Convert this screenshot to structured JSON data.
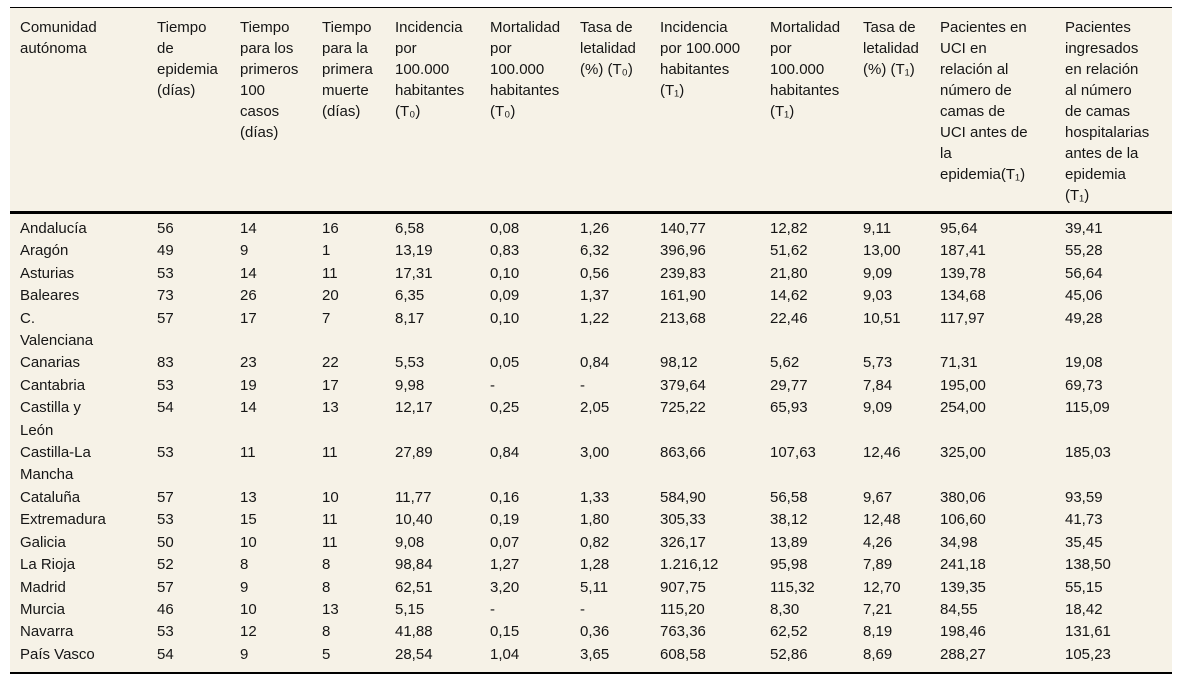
{
  "table": {
    "columns": [
      "Comunidad\nautónoma",
      "Tiempo\nde\nepidemia\n(días)",
      "Tiempo\npara los\nprimeros\n100\ncasos\n(días)",
      "Tiempo\npara la\nprimera\nmuerte\n(días)",
      "Incidencia\npor\n100.000\nhabitantes\n(T₀)",
      "Mortalidad\npor\n100.000\nhabitantes\n(T₀)",
      "Tasa de\nletalidad\n(%) (T₀)",
      "Incidencia\npor 100.000\nhabitantes\n(T₁)",
      "Mortalidad\npor\n100.000\nhabitantes\n(T₁)",
      "Tasa de\nletalidad\n(%) (T₁)",
      "Pacientes en\nUCI en\nrelación al\nnúmero de\ncamas de\nUCI antes de\nla\nepidemia(T₁)",
      "Pacientes\ningresados\nen relación\nal número\nde camas\nhospitalarias\nantes de la\nepidemia\n(T₁)"
    ],
    "rows": [
      {
        "community": "Andalucía",
        "values": [
          "56",
          "14",
          "16",
          "6,58",
          "0,08",
          "1,26",
          "140,77",
          "12,82",
          "9,11",
          "95,64",
          "39,41"
        ]
      },
      {
        "community": "Aragón",
        "values": [
          "49",
          "9",
          "1",
          "13,19",
          "0,83",
          "6,32",
          "396,96",
          "51,62",
          "13,00",
          "187,41",
          "55,28"
        ]
      },
      {
        "community": "Asturias",
        "values": [
          "53",
          "14",
          "11",
          "17,31",
          "0,10",
          "0,56",
          "239,83",
          "21,80",
          "9,09",
          "139,78",
          "56,64"
        ]
      },
      {
        "community": "Baleares",
        "values": [
          "73",
          "26",
          "20",
          "6,35",
          "0,09",
          "1,37",
          "161,90",
          "14,62",
          "9,03",
          "134,68",
          "45,06"
        ]
      },
      {
        "community": "C.\nValenciana",
        "values": [
          "57",
          "17",
          "7",
          "8,17",
          "0,10",
          "1,22",
          "213,68",
          "22,46",
          "10,51",
          "117,97",
          "49,28"
        ]
      },
      {
        "community": "Canarias",
        "values": [
          "83",
          "23",
          "22",
          "5,53",
          "0,05",
          "0,84",
          "98,12",
          "5,62",
          "5,73",
          "71,31",
          "19,08"
        ]
      },
      {
        "community": "Cantabria",
        "values": [
          "53",
          "19",
          "17",
          "9,98",
          "-",
          "-",
          "379,64",
          "29,77",
          "7,84",
          "195,00",
          "69,73"
        ]
      },
      {
        "community": "Castilla y\nLeón",
        "values": [
          "54",
          "14",
          "13",
          "12,17",
          "0,25",
          "2,05",
          "725,22",
          "65,93",
          "9,09",
          "254,00",
          "115,09"
        ]
      },
      {
        "community": "Castilla-La\nMancha",
        "values": [
          "53",
          "11",
          "11",
          "27,89",
          "0,84",
          "3,00",
          "863,66",
          "107,63",
          "12,46",
          "325,00",
          "185,03"
        ]
      },
      {
        "community": "Cataluña",
        "values": [
          "57",
          "13",
          "10",
          "11,77",
          "0,16",
          "1,33",
          "584,90",
          "56,58",
          "9,67",
          "380,06",
          "93,59"
        ]
      },
      {
        "community": "Extremadura",
        "values": [
          "53",
          "15",
          "11",
          "10,40",
          "0,19",
          "1,80",
          "305,33",
          "38,12",
          "12,48",
          "106,60",
          "41,73"
        ]
      },
      {
        "community": "Galicia",
        "values": [
          "50",
          "10",
          "11",
          "9,08",
          "0,07",
          "0,82",
          "326,17",
          "13,89",
          "4,26",
          "34,98",
          "35,45"
        ]
      },
      {
        "community": "La Rioja",
        "values": [
          "52",
          "8",
          "8",
          "98,84",
          "1,27",
          "1,28",
          "1.216,12",
          "95,98",
          "7,89",
          "241,18",
          "138,50"
        ]
      },
      {
        "community": "Madrid",
        "values": [
          "57",
          "9",
          "8",
          "62,51",
          "3,20",
          "5,11",
          "907,75",
          "115,32",
          "12,70",
          "139,35",
          "55,15"
        ]
      },
      {
        "community": "Murcia",
        "values": [
          "46",
          "10",
          "13",
          "5,15",
          "-",
          "-",
          "115,20",
          "8,30",
          "7,21",
          "84,55",
          "18,42"
        ]
      },
      {
        "community": "Navarra",
        "values": [
          "53",
          "12",
          "8",
          "41,88",
          "0,15",
          "0,36",
          "763,36",
          "62,52",
          "8,19",
          "198,46",
          "131,61"
        ]
      },
      {
        "community": "País Vasco",
        "values": [
          "54",
          "9",
          "5",
          "28,54",
          "1,04",
          "3,65",
          "608,58",
          "52,86",
          "8,69",
          "288,27",
          "105,23"
        ]
      }
    ]
  },
  "colors": {
    "table_background": "#f6f2e7",
    "page_background": "#ffffff",
    "border": "#000000",
    "text": "#161616"
  }
}
